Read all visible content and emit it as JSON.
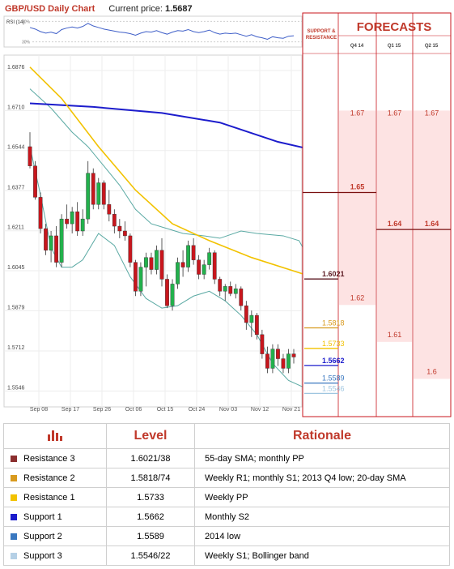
{
  "header": {
    "title": "GBP/USD Daily Chart",
    "price_label": "Current price:",
    "price_value": "1.5687"
  },
  "rsi": {
    "label": "RSI (14)",
    "tick_high": "70%",
    "tick_low": "30%"
  },
  "forecast_panel": {
    "title": "FORECASTS",
    "sr_label_line1": "SUPPORT &",
    "sr_label_line2": "RESISTANCE",
    "quarters": [
      "Q4 14",
      "Q1 15",
      "Q2 15"
    ],
    "q4": [
      {
        "label": "1.67",
        "value": 1.67,
        "bold": false
      },
      {
        "label": "1.65",
        "value": 1.65,
        "bold": true
      },
      {
        "label": "1.62",
        "value": 1.62,
        "bold": false
      }
    ],
    "q1": [
      {
        "label": "1.67",
        "value": 1.67,
        "bold": false
      },
      {
        "label": "1.64",
        "value": 1.64,
        "bold": true
      },
      {
        "label": "1.61",
        "value": 1.61,
        "bold": false
      }
    ],
    "q2": [
      {
        "label": "1.67",
        "value": 1.67,
        "bold": false
      },
      {
        "label": "1.64",
        "value": 1.64,
        "bold": true
      },
      {
        "label": "1.6",
        "value": 1.6,
        "bold": false
      }
    ]
  },
  "colors": {
    "bull": "#22b14c",
    "bear": "#c8161d",
    "sma_long": "#1c1ccc",
    "sma_mid": "#f2c200",
    "bollinger": "#5aa9a3",
    "rsi_line": "#3f5fc8",
    "forecast_line": "#c8161d",
    "forecast_bg": "#fde3e3",
    "label_red": "#c0392b"
  },
  "chart_data": {
    "type": "candlestick",
    "title": "GBP/USD Daily Chart",
    "y_ticks": [
      "1.6876",
      "1.6710",
      "1.6544",
      "1.6377",
      "1.6211",
      "1.6045",
      "1.5879",
      "1.5712",
      "1.5546"
    ],
    "ylim": [
      1.548,
      1.694
    ],
    "x_ticks": [
      "Sep 08",
      "Sep 17",
      "Sep 26",
      "Oct 06",
      "Oct 15",
      "Oct 24",
      "Nov 03",
      "Nov 12",
      "Nov 21"
    ],
    "candles": [
      [
        1.656,
        1.662,
        1.647,
        1.648
      ],
      [
        1.648,
        1.65,
        1.634,
        1.635
      ],
      [
        1.635,
        1.637,
        1.62,
        1.622
      ],
      [
        1.622,
        1.624,
        1.611,
        1.613
      ],
      [
        1.613,
        1.621,
        1.608,
        1.619
      ],
      [
        1.619,
        1.623,
        1.606,
        1.608
      ],
      [
        1.608,
        1.628,
        1.606,
        1.626
      ],
      [
        1.626,
        1.632,
        1.622,
        1.624
      ],
      [
        1.624,
        1.631,
        1.62,
        1.629
      ],
      [
        1.629,
        1.633,
        1.619,
        1.621
      ],
      [
        1.621,
        1.63,
        1.619,
        1.626
      ],
      [
        1.626,
        1.65,
        1.624,
        1.645
      ],
      [
        1.645,
        1.647,
        1.63,
        1.632
      ],
      [
        1.632,
        1.643,
        1.63,
        1.641
      ],
      [
        1.641,
        1.642,
        1.63,
        1.632
      ],
      [
        1.632,
        1.638,
        1.625,
        1.628
      ],
      [
        1.628,
        1.63,
        1.62,
        1.623
      ],
      [
        1.623,
        1.626,
        1.618,
        1.621
      ],
      [
        1.621,
        1.625,
        1.617,
        1.619
      ],
      [
        1.619,
        1.62,
        1.606,
        1.608
      ],
      [
        1.608,
        1.609,
        1.594,
        1.596
      ],
      [
        1.596,
        1.608,
        1.594,
        1.606
      ],
      [
        1.606,
        1.612,
        1.598,
        1.61
      ],
      [
        1.61,
        1.612,
        1.603,
        1.605
      ],
      [
        1.605,
        1.615,
        1.603,
        1.613
      ],
      [
        1.613,
        1.618,
        1.598,
        1.601
      ],
      [
        1.601,
        1.603,
        1.589,
        1.59
      ],
      [
        1.59,
        1.601,
        1.588,
        1.599
      ],
      [
        1.599,
        1.61,
        1.597,
        1.608
      ],
      [
        1.608,
        1.613,
        1.602,
        1.606
      ],
      [
        1.606,
        1.617,
        1.604,
        1.615
      ],
      [
        1.615,
        1.618,
        1.607,
        1.609
      ],
      [
        1.609,
        1.611,
        1.601,
        1.603
      ],
      [
        1.603,
        1.609,
        1.601,
        1.607
      ],
      [
        1.607,
        1.614,
        1.605,
        1.612
      ],
      [
        1.612,
        1.613,
        1.599,
        1.601
      ],
      [
        1.601,
        1.602,
        1.594,
        1.596
      ],
      [
        1.596,
        1.599,
        1.592,
        1.598
      ],
      [
        1.598,
        1.6,
        1.594,
        1.595
      ],
      [
        1.595,
        1.599,
        1.593,
        1.597
      ],
      [
        1.597,
        1.598,
        1.588,
        1.59
      ],
      [
        1.59,
        1.592,
        1.58,
        1.583
      ],
      [
        1.583,
        1.588,
        1.577,
        1.586
      ],
      [
        1.586,
        1.587,
        1.576,
        1.578
      ],
      [
        1.578,
        1.58,
        1.568,
        1.57
      ],
      [
        1.57,
        1.573,
        1.562,
        1.564
      ],
      [
        1.564,
        1.574,
        1.562,
        1.572
      ],
      [
        1.572,
        1.574,
        1.565,
        1.568
      ],
      [
        1.568,
        1.57,
        1.562,
        1.564
      ],
      [
        1.564,
        1.572,
        1.562,
        1.57
      ],
      [
        1.57,
        1.572,
        1.566,
        1.5687
      ]
    ],
    "sma_long": [
      [
        0,
        1.674
      ],
      [
        12,
        1.6725
      ],
      [
        25,
        1.67
      ],
      [
        36,
        1.666
      ],
      [
        47,
        1.658
      ],
      [
        52,
        1.6555
      ]
    ],
    "sma_mid": [
      [
        0,
        1.689
      ],
      [
        6,
        1.676
      ],
      [
        13,
        1.656
      ],
      [
        20,
        1.638
      ],
      [
        27,
        1.624
      ],
      [
        34,
        1.617
      ],
      [
        42,
        1.61
      ],
      [
        52,
        1.603
      ]
    ],
    "boll_upper": [
      [
        0,
        1.68
      ],
      [
        4,
        1.672
      ],
      [
        8,
        1.662
      ],
      [
        11,
        1.656
      ],
      [
        14,
        1.648
      ],
      [
        17,
        1.64
      ],
      [
        20,
        1.63
      ],
      [
        23,
        1.624
      ],
      [
        26,
        1.622
      ],
      [
        29,
        1.62
      ],
      [
        33,
        1.619
      ],
      [
        36,
        1.618
      ],
      [
        40,
        1.621
      ],
      [
        43,
        1.62
      ],
      [
        48,
        1.619
      ],
      [
        51,
        1.617
      ],
      [
        52,
        1.613
      ]
    ],
    "boll_lower": [
      [
        0,
        1.656
      ],
      [
        2,
        1.636
      ],
      [
        4,
        1.614
      ],
      [
        6,
        1.606
      ],
      [
        8,
        1.606
      ],
      [
        10,
        1.609
      ],
      [
        13,
        1.62
      ],
      [
        16,
        1.615
      ],
      [
        19,
        1.602
      ],
      [
        22,
        1.593
      ],
      [
        25,
        1.589
      ],
      [
        28,
        1.59
      ],
      [
        31,
        1.594
      ],
      [
        34,
        1.596
      ],
      [
        37,
        1.592
      ],
      [
        40,
        1.586
      ],
      [
        43,
        1.578
      ],
      [
        46,
        1.566
      ],
      [
        49,
        1.559
      ],
      [
        52,
        1.556
      ]
    ],
    "rsi_values": [
      58,
      55,
      50,
      47,
      49,
      46,
      54,
      57,
      59,
      57,
      60,
      66,
      61,
      58,
      55,
      53,
      51,
      49,
      48,
      46,
      43,
      47,
      50,
      49,
      52,
      48,
      45,
      49,
      52,
      51,
      54,
      50,
      48,
      50,
      53,
      48,
      45,
      47,
      46,
      47,
      44,
      41,
      44,
      40,
      38,
      35,
      40,
      38,
      37,
      41,
      42
    ],
    "levels": [
      {
        "label": "1.6021",
        "value": 1.6021,
        "color": "#5b1a22",
        "bold": true
      },
      {
        "label": "1.5818",
        "value": 1.5818,
        "color": "#d89a1e",
        "bold": false
      },
      {
        "label": "1.5733",
        "value": 1.5733,
        "color": "#f2c200",
        "bold": false
      },
      {
        "label": "1.5662",
        "value": 1.5662,
        "color": "#1c1ccc",
        "bold": true
      },
      {
        "label": "1.5589",
        "value": 1.5589,
        "color": "#3a78c0",
        "bold": false
      },
      {
        "label": "1.5546",
        "value": 1.5546,
        "color": "#9fc6e0",
        "bold": false
      }
    ]
  },
  "table": {
    "col_level": "Level",
    "col_rationale": "Rationale",
    "rows": [
      {
        "name": "Resistance 3",
        "level": "1.6021/38",
        "rationale": "55-day SMA; monthly PP",
        "color": "#8b2e2e"
      },
      {
        "name": "Resistance 2",
        "level": "1.5818/74",
        "rationale": "Weekly R1; monthly S1; 2013 Q4 low; 20-day SMA",
        "color": "#d89a1e"
      },
      {
        "name": "Resistance 1",
        "level": "1.5733",
        "rationale": "Weekly PP",
        "color": "#f2c200"
      },
      {
        "name": "Support 1",
        "level": "1.5662",
        "rationale": "Monthly S2",
        "color": "#1c1ccc"
      },
      {
        "name": "Support 2",
        "level": "1.5589",
        "rationale": "2014 low",
        "color": "#3a78c0"
      },
      {
        "name": "Support 3",
        "level": "1.5546/22",
        "rationale": "Weekly S1; Bollinger band",
        "color": "#b5d0e6"
      }
    ]
  }
}
